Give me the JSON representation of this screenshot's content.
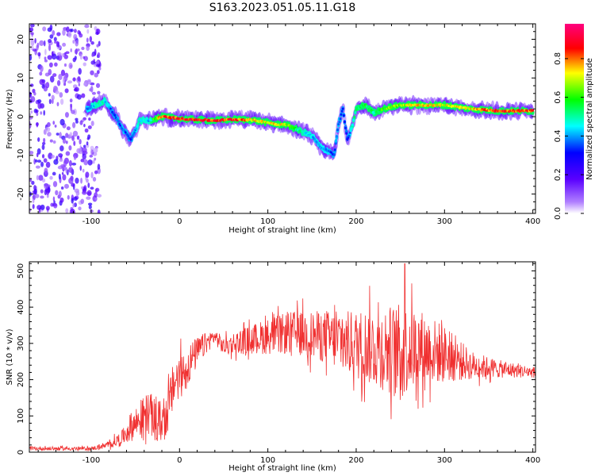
{
  "figure": {
    "title": "S163.2023.051.05.11.G18",
    "colorbar_label": "Normalized spectral amplitude",
    "colorbar_ticks": [
      "0.0",
      "0.2",
      "0.4",
      "0.6",
      "0.8"
    ],
    "colormap": [
      "#ffffff",
      "#7f00ff",
      "#0000ff",
      "#00ffff",
      "#00ff00",
      "#ffff00",
      "#ff0000",
      "#ff007f"
    ]
  },
  "chart_data": [
    {
      "type": "heatmap",
      "xlabel": "Height of straight line (km)",
      "ylabel": "Frequency (Hz)",
      "xlim": [
        -170,
        403
      ],
      "ylim": [
        -25,
        24
      ],
      "xticks": [
        "-100",
        "0",
        "100",
        "200",
        "300",
        "400"
      ],
      "yticks": [
        "-20",
        "-10",
        "0",
        "10",
        "20"
      ],
      "ridge": {
        "x": [
          -105,
          -95,
          -85,
          -75,
          -65,
          -55,
          -45,
          -35,
          -20,
          0,
          20,
          40,
          60,
          80,
          100,
          110,
          120,
          130,
          140,
          150,
          160,
          170,
          175,
          180,
          185,
          190,
          195,
          200,
          210,
          220,
          230,
          250,
          270,
          300,
          330,
          360,
          400
        ],
        "freq": [
          2,
          3,
          4,
          1,
          -3,
          -6,
          -1,
          -1,
          0,
          -0.5,
          -0.8,
          -1,
          -0.7,
          -0.8,
          -1.5,
          -2,
          -2,
          -3,
          -4,
          -5,
          -8,
          -9,
          -10,
          -2,
          2,
          -6,
          -3,
          2,
          3,
          1,
          2,
          3,
          3,
          3,
          2,
          1.5,
          1.5
        ],
        "intensity": [
          0.4,
          0.5,
          0.5,
          0.35,
          0.4,
          0.35,
          0.5,
          0.45,
          0.9,
          0.9,
          0.95,
          0.9,
          0.9,
          0.8,
          0.75,
          0.8,
          0.75,
          0.6,
          0.5,
          0.45,
          0.45,
          0.4,
          0.35,
          0.4,
          0.35,
          0.3,
          0.5,
          0.55,
          0.6,
          0.55,
          0.65,
          0.7,
          0.8,
          0.75,
          0.8,
          0.9,
          0.85
        ]
      },
      "noise_region_x": [
        -170,
        -100
      ]
    },
    {
      "type": "line",
      "xlabel": "Height of straight line (km)",
      "ylabel": "SNR (10 * v/v)",
      "xlim": [
        -170,
        403
      ],
      "ylim": [
        0,
        525
      ],
      "xticks": [
        "-100",
        "0",
        "100",
        "200",
        "300",
        "400"
      ],
      "yticks": [
        "0",
        "100",
        "200",
        "300",
        "400",
        "500"
      ],
      "color": "#f03030",
      "envelope": {
        "x": [
          -170,
          -100,
          -80,
          -65,
          -55,
          -45,
          -35,
          -25,
          -15,
          -5,
          5,
          15,
          25,
          40,
          50,
          60,
          80,
          100,
          130,
          160,
          190,
          220,
          250,
          270,
          300,
          330,
          360,
          403
        ],
        "mean": [
          10,
          10,
          20,
          40,
          70,
          90,
          110,
          80,
          100,
          200,
          220,
          260,
          290,
          320,
          290,
          300,
          310,
          320,
          330,
          320,
          300,
          290,
          280,
          290,
          270,
          240,
          230,
          220
        ],
        "spread": [
          5,
          5,
          10,
          20,
          40,
          50,
          60,
          60,
          60,
          70,
          60,
          50,
          35,
          20,
          25,
          30,
          40,
          50,
          60,
          70,
          90,
          110,
          130,
          110,
          80,
          40,
          25,
          15
        ]
      },
      "peak": {
        "x": 255,
        "y": 520
      }
    }
  ]
}
